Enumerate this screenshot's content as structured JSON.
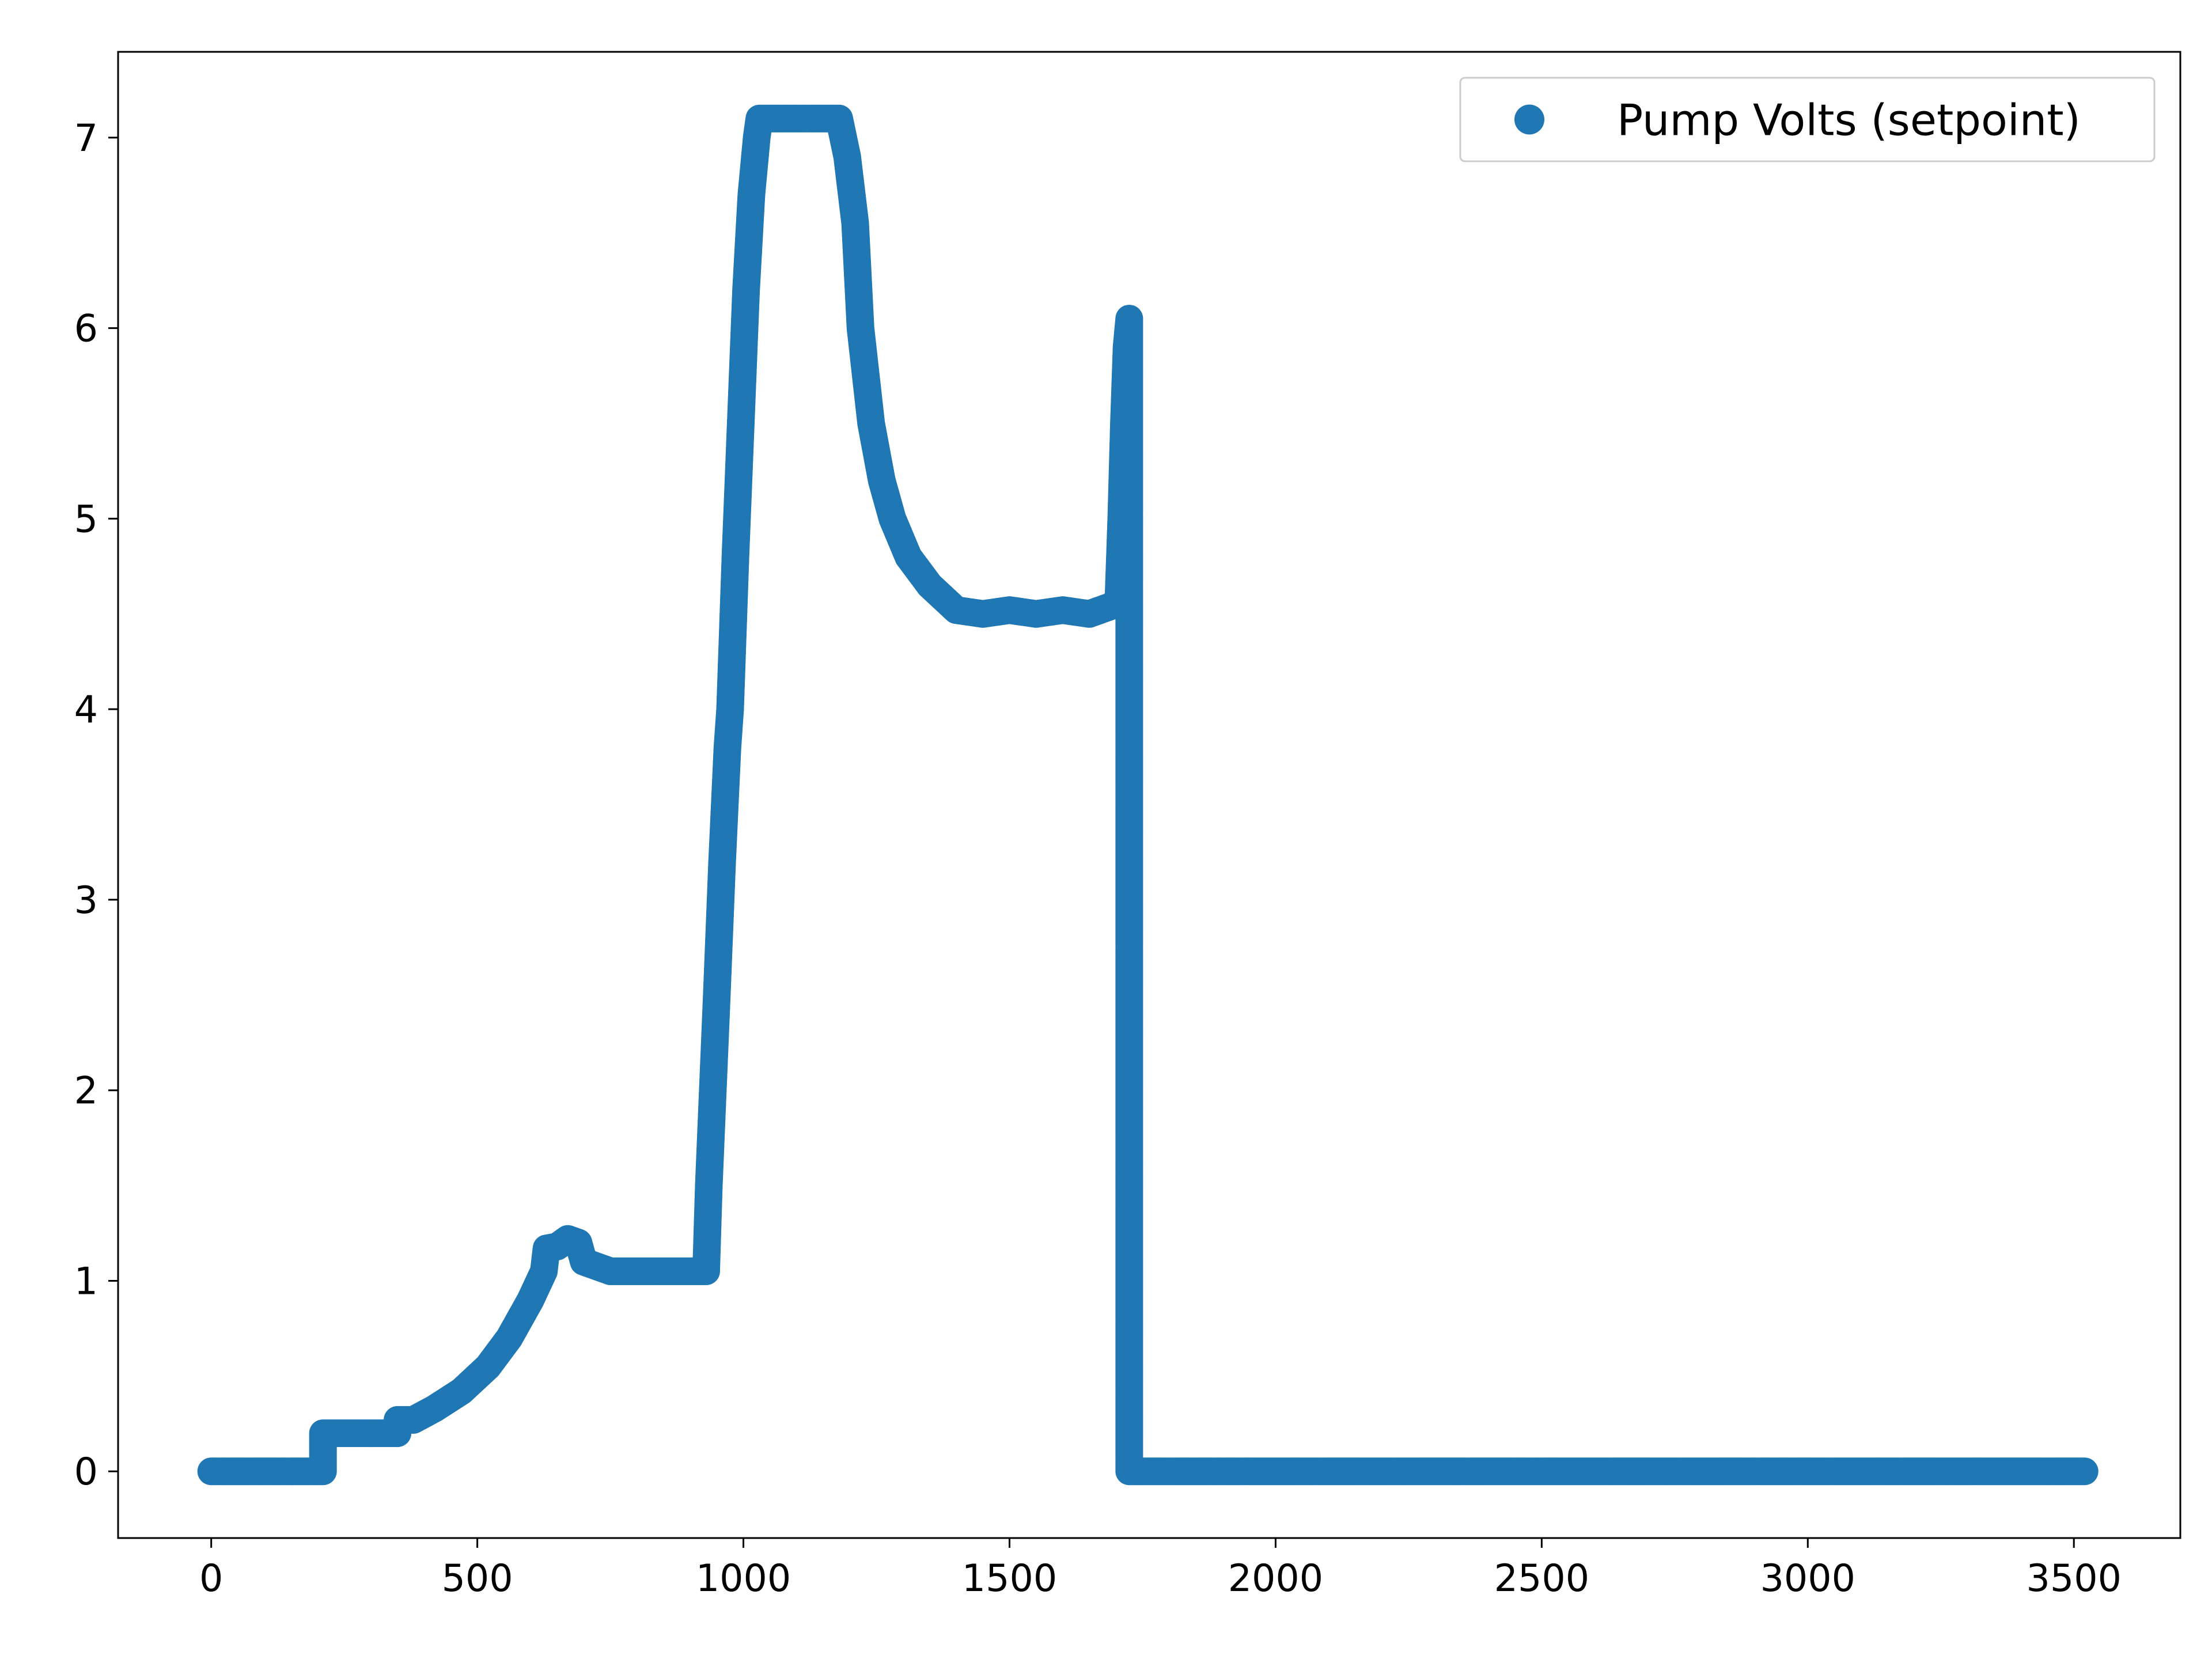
{
  "chart_data": {
    "type": "scatter",
    "title": "",
    "xlabel": "",
    "ylabel": "",
    "xlim": [
      -175,
      3700
    ],
    "ylim": [
      -0.35,
      7.45
    ],
    "xticks": [
      0,
      500,
      1000,
      1500,
      2000,
      2500,
      3000,
      3500
    ],
    "yticks": [
      0,
      1,
      2,
      3,
      4,
      5,
      6,
      7
    ],
    "grid": false,
    "legend": {
      "position": "top-right"
    },
    "series": [
      {
        "name": "Pump Volts (setpoint)",
        "color": "#1f77b4",
        "marker": "circle",
        "points": [
          [
            0,
            0
          ],
          [
            210,
            0
          ],
          [
            210,
            0.2
          ],
          [
            350,
            0.2
          ],
          [
            350,
            0.27
          ],
          [
            380,
            0.27
          ],
          [
            420,
            0.33
          ],
          [
            470,
            0.42
          ],
          [
            520,
            0.55
          ],
          [
            560,
            0.7
          ],
          [
            600,
            0.9
          ],
          [
            625,
            1.05
          ],
          [
            630,
            1.17
          ],
          [
            650,
            1.18
          ],
          [
            670,
            1.22
          ],
          [
            690,
            1.2
          ],
          [
            700,
            1.1
          ],
          [
            750,
            1.05
          ],
          [
            800,
            1.05
          ],
          [
            930,
            1.05
          ],
          [
            935,
            1.5
          ],
          [
            950,
            2.5
          ],
          [
            960,
            3.2
          ],
          [
            970,
            3.8
          ],
          [
            975,
            4.0
          ],
          [
            985,
            4.8
          ],
          [
            995,
            5.5
          ],
          [
            1005,
            6.2
          ],
          [
            1015,
            6.7
          ],
          [
            1025,
            7.0
          ],
          [
            1030,
            7.1
          ],
          [
            1180,
            7.1
          ],
          [
            1195,
            6.9
          ],
          [
            1210,
            6.55
          ],
          [
            1220,
            6.0
          ],
          [
            1240,
            5.5
          ],
          [
            1260,
            5.2
          ],
          [
            1280,
            5.0
          ],
          [
            1310,
            4.8
          ],
          [
            1350,
            4.65
          ],
          [
            1400,
            4.52
          ],
          [
            1450,
            4.5
          ],
          [
            1500,
            4.52
          ],
          [
            1550,
            4.5
          ],
          [
            1600,
            4.52
          ],
          [
            1650,
            4.5
          ],
          [
            1700,
            4.55
          ],
          [
            1705,
            4.6
          ],
          [
            1710,
            5.0
          ],
          [
            1715,
            5.5
          ],
          [
            1720,
            5.9
          ],
          [
            1725,
            6.05
          ],
          [
            1725,
            0
          ],
          [
            3520,
            0
          ]
        ]
      }
    ]
  }
}
